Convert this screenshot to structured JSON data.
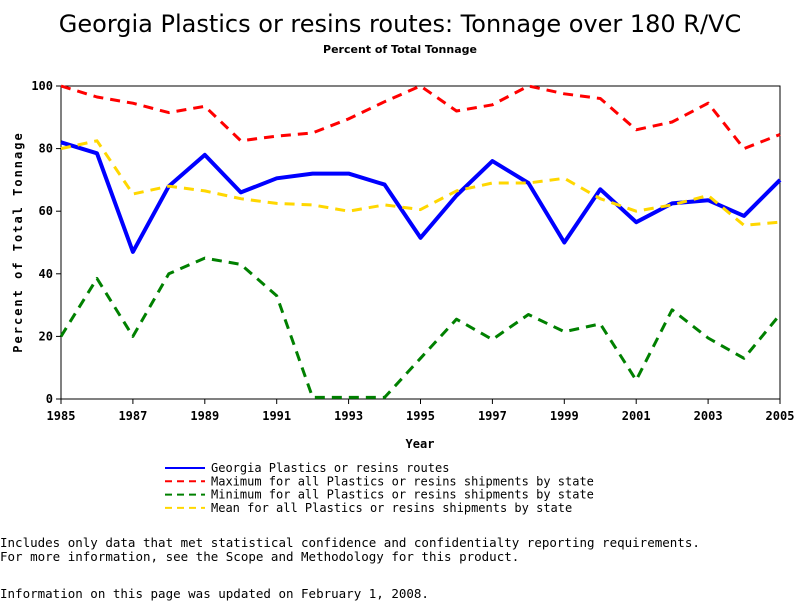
{
  "chart_data": {
    "type": "line",
    "title": "Georgia Plastics or resins routes: Tonnage over 180 R/VC",
    "subtitle": "Percent of Total Tonnage",
    "xlabel": "Year",
    "ylabel": "Percent of Total Tonnage",
    "xlim": [
      1985,
      2005
    ],
    "ylim": [
      0,
      100
    ],
    "xticks": [
      "1985",
      "1987",
      "1989",
      "1991",
      "1993",
      "1995",
      "1997",
      "1999",
      "2001",
      "2003",
      "2005"
    ],
    "yticks": [
      "0",
      "20",
      "40",
      "60",
      "80",
      "100"
    ],
    "x": [
      1985,
      1986,
      1987,
      1988,
      1989,
      1990,
      1991,
      1992,
      1993,
      1994,
      1995,
      1996,
      1997,
      1998,
      1999,
      2000,
      2001,
      2002,
      2003,
      2004,
      2005
    ],
    "series": [
      {
        "name": "Georgia Plastics or resins routes",
        "color": "#0000ff",
        "style": "solid",
        "values": [
          82,
          78.5,
          47,
          68,
          78,
          66,
          70.5,
          72,
          72,
          68.5,
          51.5,
          65,
          76,
          69,
          50,
          67,
          56.5,
          62.5,
          63.5,
          58.5,
          70
        ]
      },
      {
        "name": "Maximum for all Plastics or resins shipments by state",
        "color": "#ff0000",
        "style": "dashed",
        "values": [
          100,
          96.5,
          94.5,
          91.5,
          93.5,
          82.5,
          84,
          85,
          89.5,
          95,
          100,
          92,
          94,
          100,
          97.5,
          96,
          86,
          88.5,
          94.5,
          80,
          84.5
        ]
      },
      {
        "name": "Minimum for all Plastics or resins shipments by state",
        "color": "#008000",
        "style": "dashed",
        "values": [
          20,
          38.5,
          20,
          40,
          45,
          43,
          33,
          0.5,
          0.5,
          0.5,
          13,
          25.5,
          19,
          27,
          21.5,
          24,
          6,
          28.5,
          19.5,
          13,
          27
        ]
      },
      {
        "name": "Mean for all Plastics or resins shipments by state",
        "color": "#ffd700",
        "style": "dashed",
        "values": [
          80,
          82.5,
          65.5,
          68,
          66.5,
          64,
          62.5,
          62,
          60,
          62,
          60.5,
          66.5,
          69,
          69,
          70.5,
          64,
          60,
          62,
          65,
          55.5,
          56.5
        ]
      }
    ],
    "grid": false,
    "legend_position": "bottom"
  },
  "notes": [
    "Includes only data that met statistical confidence and confidentialty reporting requirements.",
    "For more information, see the Scope and Methodology for this product."
  ],
  "updated": "Information on this page was updated on February 1, 2008."
}
